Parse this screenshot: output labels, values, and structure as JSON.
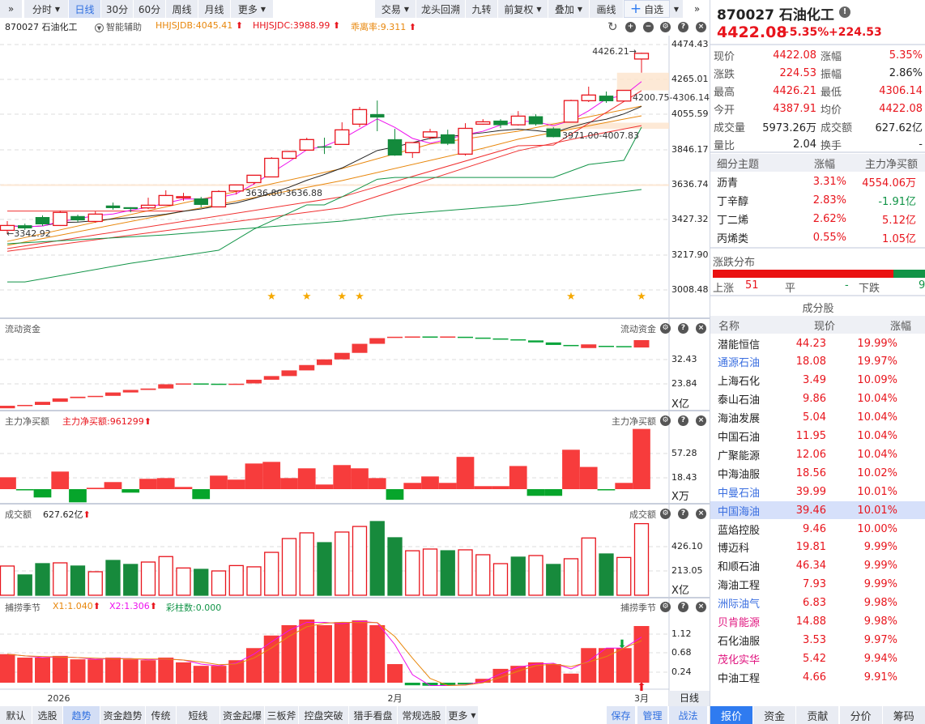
{
  "toolbar": {
    "left": [
      {
        "label": "分时",
        "caret": true
      },
      {
        "label": "日线",
        "active": true
      },
      {
        "label": "30分"
      },
      {
        "label": "60分"
      },
      {
        "label": "周线"
      },
      {
        "label": "月线"
      },
      {
        "label": "更多",
        "caret": true
      }
    ],
    "right": [
      {
        "label": "交易",
        "caret": true
      },
      {
        "label": "龙头回溯"
      },
      {
        "label": "九转"
      },
      {
        "label": "前复权",
        "caret": true
      },
      {
        "label": "叠加",
        "caret": true
      },
      {
        "label": "画线"
      }
    ],
    "watch_label": "自选",
    "expand": "»"
  },
  "legend": {
    "stock": "870027 石油化工",
    "assist": "智能辅助",
    "db": "HHJSJDB:4045.41",
    "dc": "HHJSJDC:3988.99",
    "rate": "乖离率:9.311"
  },
  "main_axis": [
    "4474.43",
    "4265.01",
    "4055.59",
    "3846.17",
    "3636.74",
    "3427.32",
    "3217.90",
    "3008.48"
  ],
  "annotations": {
    "high": "4426.21",
    "low": "3342.92",
    "gap1": "4200.75-4306.14",
    "gap2": "3971.00-4007.83",
    "gap3": "3636.80-3636.88"
  },
  "chart_data": {
    "type": "candlestick",
    "candles": [
      [
        3365,
        3420,
        3343,
        3394
      ],
      [
        3394,
        3405,
        3367,
        3378
      ],
      [
        3443,
        3454,
        3391,
        3402
      ],
      [
        3394,
        3483,
        3391,
        3472
      ],
      [
        3449,
        3458,
        3415,
        3426
      ],
      [
        3418,
        3478,
        3410,
        3462
      ],
      [
        3512,
        3531,
        3488,
        3499
      ],
      [
        3502,
        3503,
        3473,
        3494
      ],
      [
        3499,
        3560,
        3492,
        3515
      ],
      [
        3515,
        3604,
        3514,
        3573
      ],
      [
        3559,
        3589,
        3541,
        3566
      ],
      [
        3554,
        3565,
        3502,
        3518
      ],
      [
        3505,
        3604,
        3505,
        3597
      ],
      [
        3600,
        3637,
        3579,
        3636
      ],
      [
        3650,
        3695,
        3637,
        3694
      ],
      [
        3684,
        3802,
        3684,
        3795
      ],
      [
        3795,
        3840,
        3792,
        3836
      ],
      [
        3844,
        3918,
        3844,
        3907
      ],
      [
        3865,
        3918,
        3821,
        3860
      ],
      [
        3878,
        4010,
        3878,
        3965
      ],
      [
        3999,
        4102,
        3981,
        4086
      ],
      [
        4058,
        4140,
        3957,
        4040
      ],
      [
        3908,
        3971,
        3810,
        3813
      ],
      [
        3829,
        3890,
        3797,
        3889
      ],
      [
        3921,
        3971,
        3908,
        3953
      ],
      [
        3937,
        3966,
        3874,
        3883
      ],
      [
        3820,
        4005,
        3811,
        3974
      ],
      [
        3999,
        4029,
        3995,
        4013
      ],
      [
        4019,
        4029,
        3976,
        3994
      ],
      [
        3995,
        4077,
        3990,
        4047
      ],
      [
        4045,
        4058,
        3990,
        3999
      ],
      [
        3972,
        3981,
        3920,
        3923
      ],
      [
        4011,
        4145,
        4008,
        4140
      ],
      [
        4139,
        4223,
        4131,
        4173
      ],
      [
        4168,
        4194,
        4126,
        4137
      ],
      [
        4137,
        4203,
        4135,
        4201
      ],
      [
        4387.91,
        4426.21,
        4306.14,
        4422.08
      ]
    ],
    "lines": [
      {
        "name": "orange-1",
        "color": "#e8870c",
        "points": [
          [
            0,
            3299
          ],
          [
            19,
            3734
          ],
          [
            24,
            3880
          ],
          [
            29,
            3957
          ],
          [
            36,
            4107
          ]
        ]
      },
      {
        "name": "orange-2",
        "color": "#e8870c",
        "points": [
          [
            0,
            3275
          ],
          [
            19,
            3662
          ],
          [
            27,
            3855
          ],
          [
            29,
            3909
          ],
          [
            36,
            4049
          ]
        ]
      },
      {
        "name": "red-1",
        "color": "#f03030",
        "points": [
          [
            0,
            3256
          ],
          [
            19,
            3565
          ],
          [
            29,
            3870
          ],
          [
            31,
            3874
          ],
          [
            36,
            4199
          ]
        ]
      },
      {
        "name": "red-2",
        "color": "#f03030",
        "points": [
          [
            0,
            3240
          ],
          [
            19,
            3500
          ],
          [
            29,
            3840
          ],
          [
            33,
            3930
          ],
          [
            36,
            3990
          ]
        ]
      },
      {
        "name": "red-flat",
        "color": "#f03030",
        "points": [
          [
            0,
            3480
          ],
          [
            10,
            3480
          ]
        ]
      },
      {
        "name": "green-1",
        "color": "#119447",
        "points": [
          [
            0,
            3057
          ],
          [
            1,
            3057
          ],
          [
            7,
            3168
          ],
          [
            12,
            3246
          ],
          [
            14,
            3372
          ],
          [
            17,
            3517
          ],
          [
            18,
            3517
          ],
          [
            19,
            3565
          ],
          [
            21,
            3670
          ],
          [
            22,
            3681
          ],
          [
            31,
            3681
          ],
          [
            33,
            3758
          ],
          [
            35,
            3783
          ],
          [
            36,
            3981
          ]
        ]
      },
      {
        "name": "green-2",
        "color": "#119447",
        "points": [
          [
            0,
            3285
          ],
          [
            9,
            3338
          ],
          [
            19,
            3420
          ],
          [
            22,
            3459
          ],
          [
            29,
            3517
          ],
          [
            36,
            3609
          ]
        ]
      }
    ],
    "stars": [
      15,
      17,
      19,
      20,
      32,
      36
    ],
    "zones": [
      {
        "from": 4200.75,
        "to": 4306.14,
        "start": 35
      },
      {
        "from": 3971.0,
        "to": 4007.83,
        "start": 31
      },
      {
        "from": 3630,
        "to": 3640,
        "start": 0
      }
    ],
    "x_ticks": [
      {
        "label": "2026",
        "index": 2
      },
      {
        "label": "2月",
        "index": 22
      },
      {
        "label": "3月",
        "index": 36
      }
    ],
    "flow": {
      "title": "流动资金",
      "unit": "X亿",
      "axis": [
        "32.43",
        "23.84"
      ],
      "ticks": [
        32.43,
        23.84
      ],
      "values": [
        [
          15.2,
          16.1
        ],
        [
          16.3,
          16.4
        ],
        [
          16.4,
          17.5
        ],
        [
          17.5,
          18.7
        ],
        [
          18.8,
          19.3
        ],
        [
          19.4,
          19.6
        ],
        [
          19.6,
          20.8
        ],
        [
          20.8,
          21.7
        ],
        [
          21.7,
          22.2
        ],
        [
          22.2,
          23.7
        ],
        [
          23.8,
          24.0
        ],
        [
          24.0,
          23.9
        ],
        [
          23.9,
          23.7
        ],
        [
          23.7,
          23.9
        ],
        [
          24.0,
          25.3
        ],
        [
          25.3,
          26.6
        ],
        [
          26.6,
          28.6
        ],
        [
          28.6,
          30.5
        ],
        [
          30.5,
          32.5
        ],
        [
          32.5,
          34.8
        ],
        [
          34.8,
          38.0
        ],
        [
          38.0,
          40.0
        ],
        [
          40.2,
          40.5
        ],
        [
          40.5,
          40.6
        ],
        [
          40.6,
          40.4
        ],
        [
          40.4,
          40.6
        ],
        [
          40.5,
          40.2
        ],
        [
          40.2,
          39.9
        ],
        [
          39.9,
          39.6
        ],
        [
          39.6,
          39.2
        ],
        [
          39.2,
          38.5
        ],
        [
          38.5,
          37.6
        ],
        [
          37.6,
          37.4
        ],
        [
          36.5,
          37.8
        ],
        [
          37.3,
          37.1
        ],
        [
          37.2,
          37.0
        ],
        [
          36.7,
          39.3
        ]
      ]
    },
    "netbuy": {
      "title": "主力净买额",
      "label": "主力净买额:961299",
      "unit": "X万",
      "axis": [
        "57.28",
        "18.43"
      ],
      "ticks": [
        57.28,
        18.43
      ],
      "values": [
        19.0,
        -0.5,
        -13.3,
        28.1,
        -21.1,
        2.2,
        11.3,
        -5.6,
        16.5,
        17.7,
        3.5,
        -15.9,
        21.6,
        15.2,
        41,
        43.6,
        17.7,
        33.3,
        7.4,
        38.5,
        33.3,
        17.7,
        -17,
        10,
        20.3,
        10,
        51.6,
        4.8,
        4.8,
        37,
        -10.7,
        -10.7,
        63,
        35.5,
        -1.5,
        10,
        96.3
      ]
    },
    "turnover": {
      "title": "成交额",
      "label": "627.62亿",
      "unit": "X亿",
      "axis": [
        "426.10",
        "213.05"
      ],
      "ticks": [
        426.1,
        213.05
      ],
      "values": [
        256,
        178,
        277,
        284,
        256,
        206,
        305,
        270,
        291,
        339,
        239,
        227,
        213,
        260,
        249,
        376,
        497,
        547,
        461,
        554,
        603,
        646,
        504,
        390,
        405,
        390,
        398,
        355,
        277,
        334,
        348,
        270,
        320,
        502,
        362,
        331,
        627.62
      ],
      "up": [
        1,
        0,
        0,
        1,
        0,
        1,
        0,
        0,
        1,
        1,
        1,
        0,
        1,
        1,
        1,
        1,
        1,
        1,
        0,
        1,
        1,
        0,
        0,
        1,
        1,
        0,
        1,
        1,
        1,
        0,
        1,
        0,
        1,
        1,
        0,
        1,
        1
      ]
    },
    "season": {
      "title": "捕捞季节",
      "x1": "X1:1.040",
      "x2": "X2:1.306",
      "bars": "彩柱数:0.000",
      "axis": [
        "1.12",
        "0.68",
        "0.24"
      ],
      "ticks": [
        1.12,
        0.68,
        0.24
      ],
      "values": [
        0.66,
        0.58,
        0.58,
        0.62,
        0.54,
        0.54,
        0.58,
        0.54,
        0.52,
        0.58,
        0.47,
        0.39,
        0.39,
        0.52,
        0.8,
        1.09,
        1.33,
        1.46,
        1.33,
        1.4,
        1.44,
        1.33,
        0.43,
        -0.06,
        -0.07,
        -0.06,
        -0.04,
        0.09,
        0.32,
        0.39,
        0.47,
        0.43,
        0.21,
        0.8,
        0.8,
        0.8,
        1.31
      ]
    }
  },
  "axis_day_label": "日线",
  "quote": {
    "title": "870027 石油化工",
    "price": "4422.08",
    "pct": "+5.35%",
    "chg": "+224.53",
    "rows": [
      [
        "现价",
        "4422.08",
        "red",
        "涨幅",
        "5.35%",
        "red"
      ],
      [
        "涨跌",
        "224.53",
        "red",
        "振幅",
        "2.86%",
        ""
      ],
      [
        "最高",
        "4426.21",
        "red",
        "最低",
        "4306.14",
        "red"
      ],
      [
        "今开",
        "4387.91",
        "red",
        "均价",
        "4422.08",
        "red"
      ]
    ],
    "rows2": [
      [
        "成交量",
        "5973.26万",
        "",
        "成交额",
        "627.62亿",
        ""
      ],
      [
        "量比",
        "2.04",
        "",
        "换手",
        "-",
        ""
      ]
    ]
  },
  "themes": {
    "headers": [
      "细分主题",
      "涨幅",
      "主力净买额"
    ],
    "items": [
      [
        "沥青",
        "3.31%",
        "4554.06万",
        "red"
      ],
      [
        "丁辛醇",
        "2.83%",
        "-1.91亿",
        "green"
      ],
      [
        "丁二烯",
        "2.62%",
        "5.12亿",
        "red"
      ],
      [
        "丙烯类",
        "0.55%",
        "1.05亿",
        "red"
      ]
    ]
  },
  "dist": {
    "title": "涨跌分布",
    "up_label": "上涨",
    "up": "51",
    "flat_label": "平",
    "flat": "-",
    "down_label": "下跌",
    "down": "9",
    "up_fraction": 0.85
  },
  "components": {
    "title": "成分股",
    "headers": [
      "名称",
      "现价",
      "涨幅"
    ],
    "items": [
      [
        "潜能恒信",
        "44.23",
        "19.99%",
        ""
      ],
      [
        "通源石油",
        "18.08",
        "19.97%",
        "blue"
      ],
      [
        "上海石化",
        "3.49",
        "10.09%",
        ""
      ],
      [
        "泰山石油",
        "9.86",
        "10.04%",
        ""
      ],
      [
        "海油发展",
        "5.04",
        "10.04%",
        ""
      ],
      [
        "中国石油",
        "11.95",
        "10.04%",
        ""
      ],
      [
        "广聚能源",
        "12.06",
        "10.04%",
        ""
      ],
      [
        "中海油服",
        "18.56",
        "10.02%",
        ""
      ],
      [
        "中曼石油",
        "39.99",
        "10.01%",
        "blue"
      ],
      [
        "中国海油",
        "39.46",
        "10.01%",
        "blue"
      ],
      [
        "蓝焰控股",
        "9.46",
        "10.00%",
        ""
      ],
      [
        "博迈科",
        "19.81",
        "9.99%",
        ""
      ],
      [
        "和顺石油",
        "46.34",
        "9.99%",
        ""
      ],
      [
        "海油工程",
        "7.93",
        "9.99%",
        ""
      ],
      [
        "洲际油气",
        "6.83",
        "9.98%",
        "blue"
      ],
      [
        "贝肯能源",
        "14.88",
        "9.98%",
        "pink"
      ],
      [
        "石化油服",
        "3.53",
        "9.97%",
        ""
      ],
      [
        "茂化实华",
        "5.42",
        "9.94%",
        "pink"
      ],
      [
        "中油工程",
        "4.66",
        "9.91%",
        ""
      ]
    ],
    "selected": 9
  },
  "bottom_tabs": [
    "默认",
    "选股",
    "趋势",
    "资金趋势",
    "传统",
    "短线",
    "资金起爆",
    "三板斧",
    "控盘突破",
    "猎手看盘",
    "常规选股",
    "更多"
  ],
  "bottom_active": 2,
  "bottom_actions": [
    "保存",
    "管理",
    "战法"
  ],
  "right_tabs": [
    "报价",
    "资金",
    "贡献",
    "分价",
    "筹码"
  ],
  "colors": {
    "up": "#e8141c",
    "down": "#138a3c",
    "fill_up": "#f73c3c",
    "accent": "#2f7bf0"
  }
}
